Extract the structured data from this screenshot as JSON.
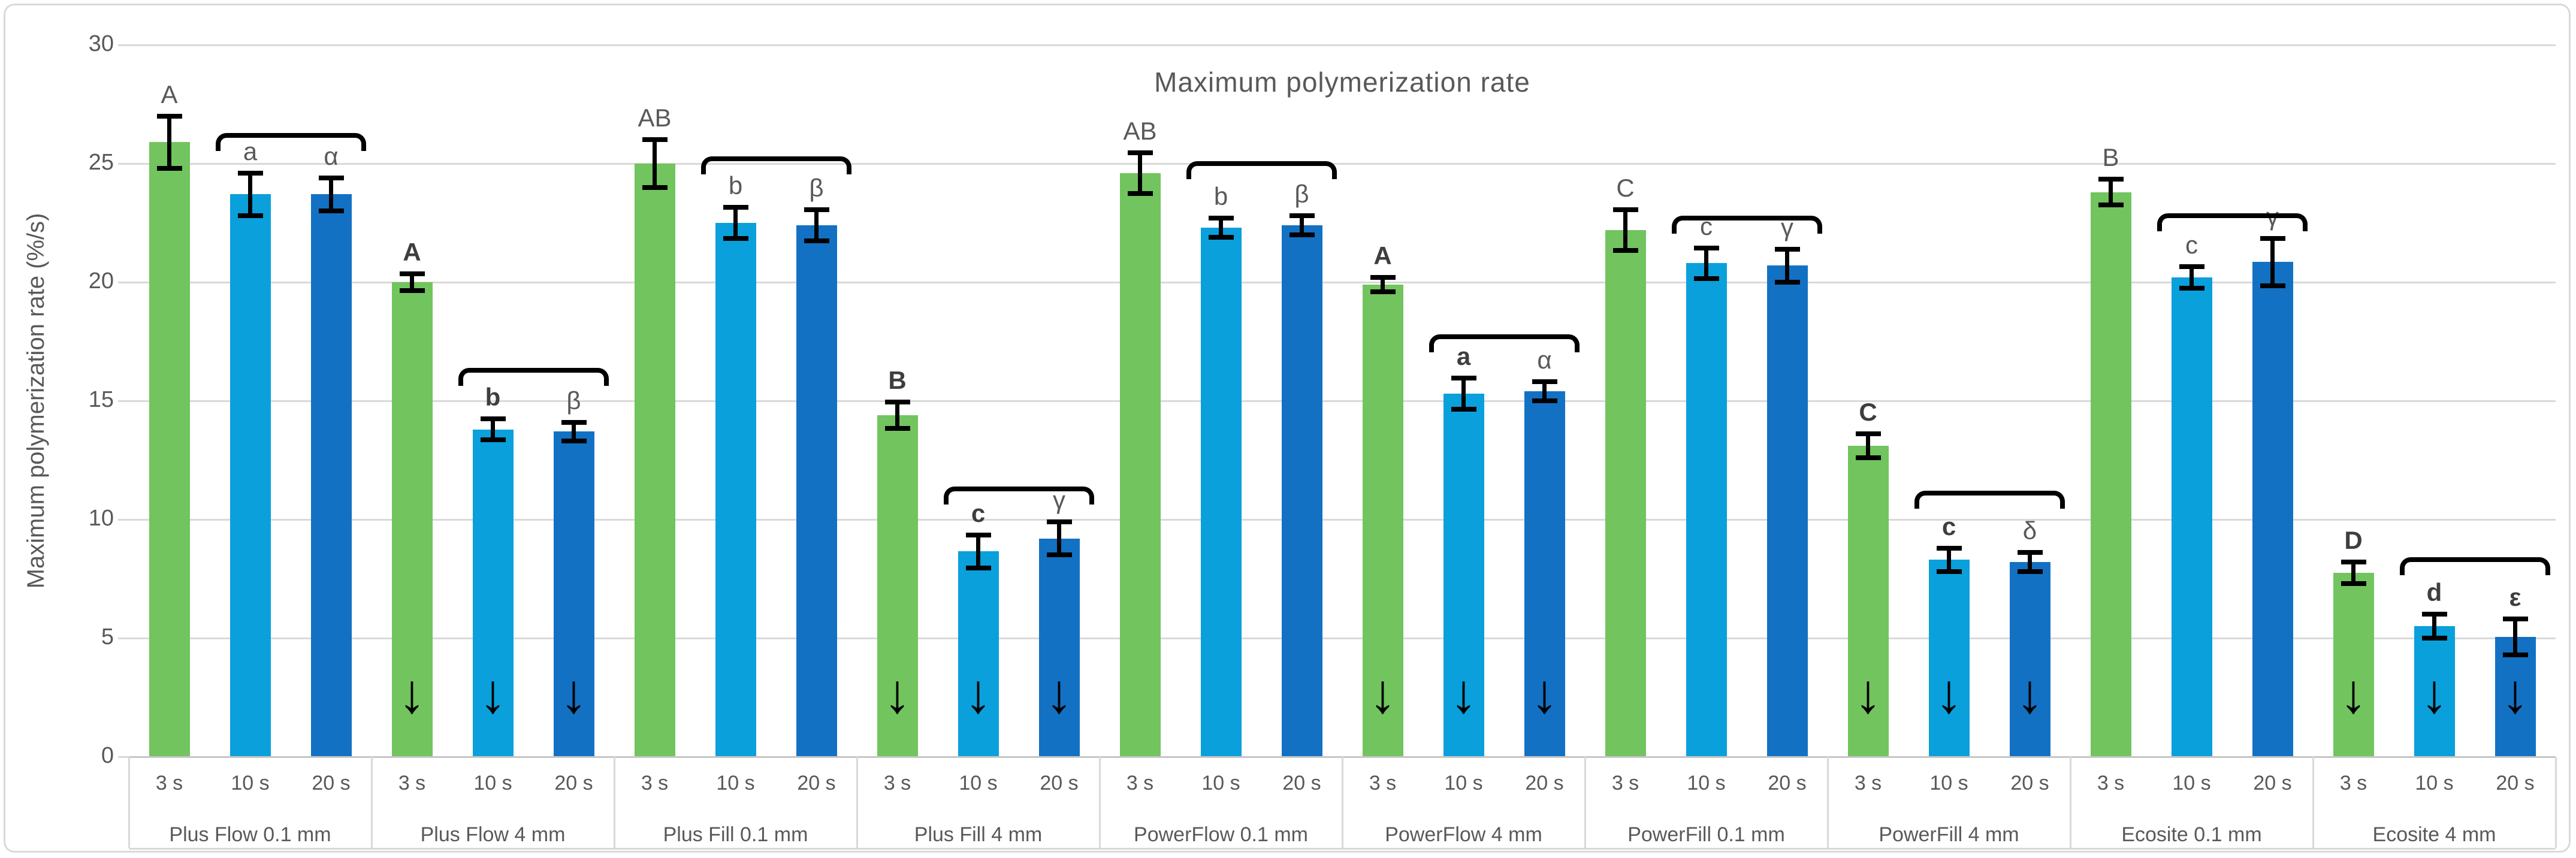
{
  "chart_data": {
    "type": "bar",
    "title": "Maximum polymerization rate",
    "xlabel": "",
    "ylabel": "Maximum polymerization rate (%/s)",
    "ylim": [
      0,
      30
    ],
    "yticks": [
      0,
      5,
      10,
      15,
      20,
      25,
      30
    ],
    "grid": true,
    "legend": "none",
    "series_labels": [
      "3 s",
      "10 s",
      "20 s"
    ],
    "series_colors": [
      "#72C45E",
      "#0AA0DB",
      "#1371C3"
    ],
    "annotation_style": {
      "down_arrow_glyph": "↓",
      "down_arrow_center_value": 2.65
    },
    "groups": [
      {
        "label": "Plus Flow 0.1 mm",
        "values": [
          25.9,
          23.7,
          23.7
        ],
        "errors": [
          1.1,
          0.9,
          0.7
        ],
        "letters": [
          "A",
          "a",
          "α"
        ],
        "letters_bold": [
          false,
          false,
          false
        ],
        "down_arrows": false,
        "bracket_y": 26.3
      },
      {
        "label": "Plus Flow 4 mm",
        "values": [
          20.0,
          13.8,
          13.7
        ],
        "errors": [
          0.35,
          0.45,
          0.4
        ],
        "letters": [
          "A",
          "b",
          "β"
        ],
        "letters_bold": [
          true,
          true,
          false
        ],
        "down_arrows": true,
        "bracket_y": 16.4
      },
      {
        "label": "Plus Fill 0.1 mm",
        "values": [
          25.0,
          22.5,
          22.4
        ],
        "errors": [
          1.0,
          0.65,
          0.65
        ],
        "letters": [
          "AB",
          "b",
          "β"
        ],
        "letters_bold": [
          false,
          false,
          false
        ],
        "down_arrows": false,
        "bracket_y": 25.3
      },
      {
        "label": "Plus Fill 4 mm",
        "values": [
          14.4,
          8.65,
          9.2
        ],
        "errors": [
          0.55,
          0.7,
          0.7
        ],
        "letters": [
          "B",
          "c",
          "γ"
        ],
        "letters_bold": [
          true,
          true,
          false
        ],
        "down_arrows": true,
        "bracket_y": 11.4
      },
      {
        "label": "PowerFlow 0.1 mm",
        "values": [
          24.6,
          22.3,
          22.4
        ],
        "errors": [
          0.85,
          0.4,
          0.4
        ],
        "letters": [
          "AB",
          "b",
          "β"
        ],
        "letters_bold": [
          false,
          false,
          false
        ],
        "down_arrows": false,
        "bracket_y": 25.1
      },
      {
        "label": "PowerFlow 4 mm",
        "values": [
          19.9,
          15.3,
          15.4
        ],
        "errors": [
          0.3,
          0.65,
          0.4
        ],
        "letters": [
          "A",
          "a",
          "α"
        ],
        "letters_bold": [
          true,
          true,
          false
        ],
        "down_arrows": true,
        "bracket_y": 17.8
      },
      {
        "label": "PowerFill 0.1 mm",
        "values": [
          22.2,
          20.8,
          20.7
        ],
        "errors": [
          0.85,
          0.65,
          0.7
        ],
        "letters": [
          "C",
          "c",
          "γ"
        ],
        "letters_bold": [
          false,
          false,
          false
        ],
        "down_arrows": false,
        "bracket_y": 22.8
      },
      {
        "label": "PowerFill 4 mm",
        "values": [
          13.1,
          8.3,
          8.2
        ],
        "errors": [
          0.5,
          0.5,
          0.4
        ],
        "letters": [
          "C",
          "c",
          "δ"
        ],
        "letters_bold": [
          true,
          true,
          false
        ],
        "down_arrows": true,
        "bracket_y": 11.2
      },
      {
        "label": "Ecosite 0.1 mm",
        "values": [
          23.8,
          20.2,
          20.85
        ],
        "errors": [
          0.55,
          0.45,
          1.0
        ],
        "letters": [
          "B",
          "c",
          "γ"
        ],
        "letters_bold": [
          false,
          false,
          false
        ],
        "down_arrows": false,
        "bracket_y": 22.9
      },
      {
        "label": "Ecosite 4 mm",
        "values": [
          7.75,
          5.5,
          5.05
        ],
        "errors": [
          0.45,
          0.5,
          0.75
        ],
        "letters": [
          "D",
          "d",
          "ε"
        ],
        "letters_bold": [
          true,
          true,
          true
        ],
        "down_arrows": true,
        "bracket_y": 8.4
      }
    ]
  },
  "style": {
    "text_color": "#595959",
    "bold_letter_color": "#3E3E3E",
    "gridline_color": "#D9D9D9",
    "axis_line_color": "#C6C6C6",
    "annotation_color": "#000000",
    "frame_border_color": "#D9D9D9",
    "background": "#FFFFFF"
  }
}
